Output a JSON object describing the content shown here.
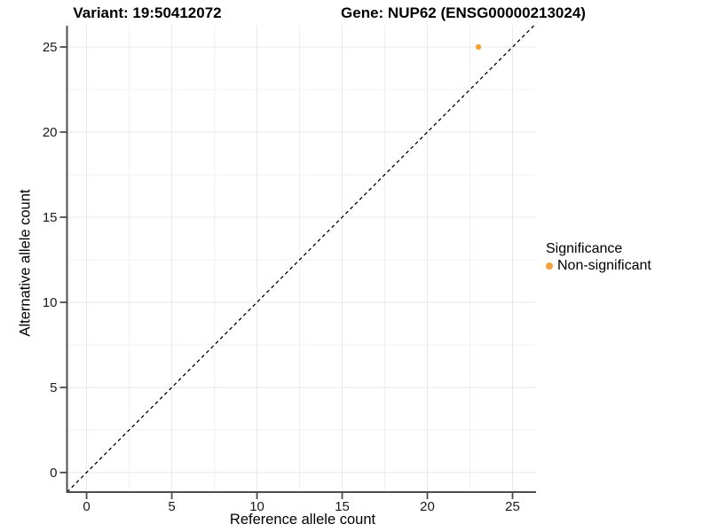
{
  "chart_data": {
    "type": "scatter",
    "title_left": "Variant: 19:50412072",
    "title_right": "Gene: NUP62 (ENSG00000213024)",
    "xlabel": "Reference allele count",
    "ylabel": "Alternative allele count",
    "xlim": [
      -1.15,
      26.38
    ],
    "ylim": [
      -1.15,
      26.25
    ],
    "x_ticks": [
      0,
      5,
      10,
      15,
      20,
      25
    ],
    "y_ticks": [
      0,
      5,
      10,
      15,
      20,
      25
    ],
    "x_minor_ticks": [
      2.5,
      7.5,
      12.5,
      17.5,
      22.5
    ],
    "y_minor_ticks": [
      2.5,
      7.5,
      12.5,
      17.5,
      22.5
    ],
    "grid": true,
    "identity_line": {
      "style": "dashed",
      "slope": 1,
      "intercept": 0,
      "color": "#000000"
    },
    "points": [
      {
        "x": 23,
        "y": 25,
        "series": "Non-significant"
      }
    ],
    "legend": {
      "title": "Significance",
      "position": "right",
      "items": [
        {
          "label": "Non-significant",
          "color": "#F9A23C"
        }
      ]
    },
    "colors": {
      "point": "#F9A23C",
      "grid_major": "#E8E8E8",
      "grid_minor": "#F1F1F1",
      "axis_line": "#4D4D4D",
      "tick_label": "#1A1A1A",
      "background": "#FFFFFF"
    }
  }
}
